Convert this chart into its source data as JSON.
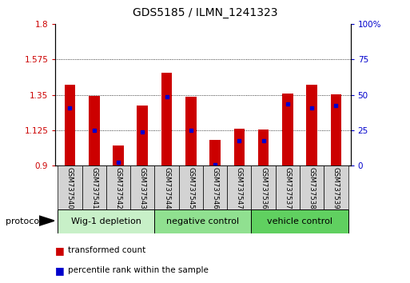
{
  "title": "GDS5185 / ILMN_1241323",
  "samples": [
    "GSM737540",
    "GSM737541",
    "GSM737542",
    "GSM737543",
    "GSM737544",
    "GSM737545",
    "GSM737546",
    "GSM737547",
    "GSM737536",
    "GSM737537",
    "GSM737538",
    "GSM737539"
  ],
  "bar_tops": [
    1.415,
    1.345,
    1.03,
    1.28,
    1.49,
    1.34,
    1.065,
    1.135,
    1.13,
    1.36,
    1.415,
    1.355
  ],
  "blue_positions": [
    1.265,
    1.125,
    0.92,
    1.115,
    1.34,
    1.125,
    0.905,
    1.06,
    1.06,
    1.29,
    1.265,
    1.28
  ],
  "bar_bottom": 0.9,
  "ylim_left": [
    0.9,
    1.8
  ],
  "ylim_right": [
    0,
    100
  ],
  "yticks_left": [
    0.9,
    1.125,
    1.35,
    1.575,
    1.8
  ],
  "yticks_right": [
    0,
    25,
    50,
    75,
    100
  ],
  "ytick_labels_left": [
    "0.9",
    "1.125",
    "1.35",
    "1.575",
    "1.8"
  ],
  "ytick_labels_right": [
    "0",
    "25",
    "50",
    "75",
    "100%"
  ],
  "groups": [
    {
      "label": "Wig-1 depletion",
      "start": 0,
      "end": 3,
      "color": "#c8f0c8"
    },
    {
      "label": "negative control",
      "start": 4,
      "end": 7,
      "color": "#90e090"
    },
    {
      "label": "vehicle control",
      "start": 8,
      "end": 11,
      "color": "#60d060"
    }
  ],
  "bar_color": "#cc0000",
  "blue_color": "#0000cc",
  "bar_width": 0.45,
  "tick_color_left": "#cc0000",
  "tick_color_right": "#0000cc",
  "protocol_label": "protocol",
  "legend_items": [
    {
      "label": "transformed count",
      "color": "#cc0000"
    },
    {
      "label": "percentile rank within the sample",
      "color": "#0000cc"
    }
  ],
  "sample_label_bg": "#d3d3d3",
  "fig_width": 5.13,
  "fig_height": 3.54,
  "dpi": 100
}
